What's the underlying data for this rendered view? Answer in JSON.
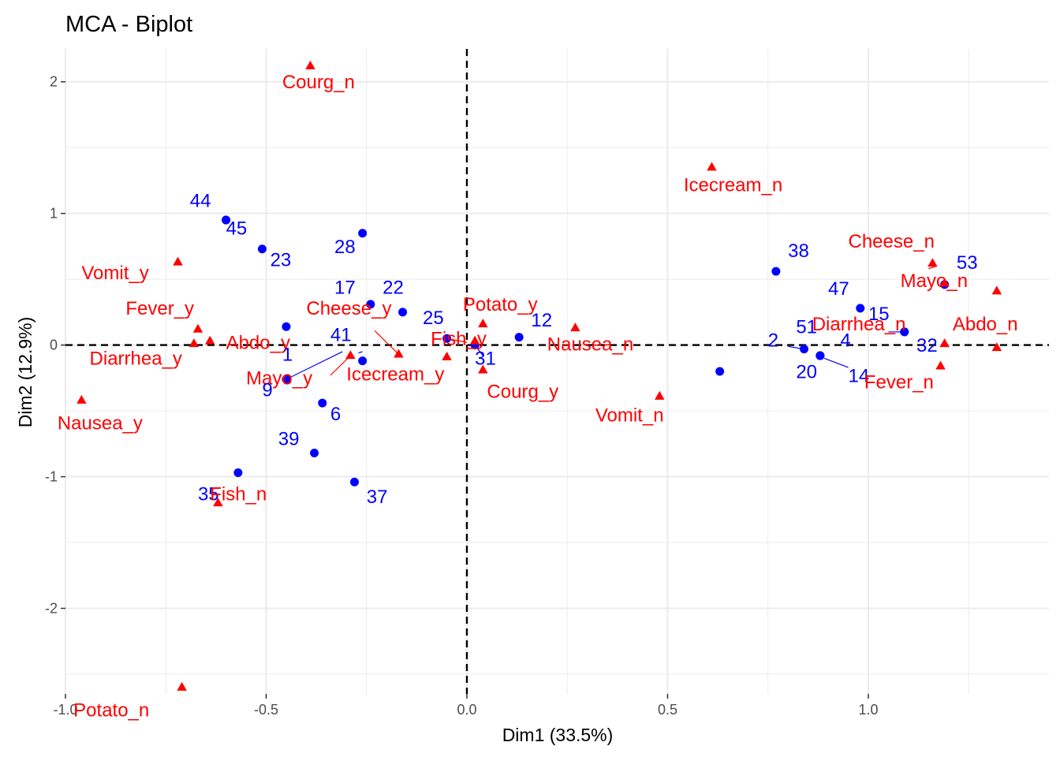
{
  "chart_data": {
    "type": "scatter",
    "title": "MCA - Biplot",
    "xlabel": "Dim1 (33.5%)",
    "ylabel": "Dim2 (12.9%)",
    "xlim": [
      -1.0,
      1.45
    ],
    "ylim": [
      -2.65,
      2.25
    ],
    "x_ticks": [
      -1.0,
      -0.5,
      0.0,
      0.5,
      1.0
    ],
    "x_tick_labels": [
      "-1.0",
      "-0.5",
      "0.0",
      "0.5",
      "1.0"
    ],
    "y_ticks": [
      -2,
      -1,
      0,
      1,
      2
    ],
    "y_tick_labels": [
      "-2",
      "-1",
      "0",
      "1",
      "2"
    ],
    "grid": true,
    "reference_lines": {
      "x": 0,
      "y": 0,
      "style": "dashed"
    },
    "series": [
      {
        "color": "#0000ff",
        "marker": "circle",
        "points": [
          {
            "label": "44",
            "x": -0.6,
            "y": 0.95
          },
          {
            "label": "45",
            "x": -0.6,
            "y": 0.95
          },
          {
            "label": "23",
            "x": -0.51,
            "y": 0.73
          },
          {
            "label": "28",
            "x": -0.26,
            "y": 0.85
          },
          {
            "label": "17",
            "x": -0.24,
            "y": 0.31
          },
          {
            "label": "22",
            "x": -0.16,
            "y": 0.25
          },
          {
            "label": "25",
            "x": -0.05,
            "y": 0.05
          },
          {
            "label": "41",
            "x": -0.26,
            "y": -0.12
          },
          {
            "label": "1",
            "x": -0.45,
            "y": 0.14
          },
          {
            "label": "9",
            "x": -0.45,
            "y": -0.26
          },
          {
            "label": "6",
            "x": -0.36,
            "y": -0.44
          },
          {
            "label": "39",
            "x": -0.38,
            "y": -0.82
          },
          {
            "label": "35",
            "x": -0.57,
            "y": -0.97
          },
          {
            "label": "37",
            "x": -0.28,
            "y": -1.04
          },
          {
            "label": "12",
            "x": 0.13,
            "y": 0.06
          },
          {
            "label": "31",
            "x": 0.02,
            "y": 0.0
          },
          {
            "label": "38",
            "x": 0.77,
            "y": 0.56
          },
          {
            "label": "47",
            "x": 0.98,
            "y": 0.28
          },
          {
            "label": "15",
            "x": 1.09,
            "y": 0.1
          },
          {
            "label": "53",
            "x": 1.19,
            "y": 0.46
          },
          {
            "label": "51",
            "x": 0.88,
            "y": -0.08
          },
          {
            "label": "2",
            "x": 0.84,
            "y": -0.03
          },
          {
            "label": "4",
            "x": 0.88,
            "y": -0.08
          },
          {
            "label": "20",
            "x": 0.63,
            "y": -0.2
          },
          {
            "label": "14",
            "x": 0.88,
            "y": -0.08
          },
          {
            "label": "32",
            "x": 1.09,
            "y": 0.1
          }
        ]
      },
      {
        "color": "#ff0000",
        "marker": "triangle",
        "points": [
          {
            "label": "Courg_n",
            "x": -0.39,
            "y": 2.12
          },
          {
            "label": "Icecream_n",
            "x": 0.61,
            "y": 1.35
          },
          {
            "label": "Vomit_y",
            "x": -0.72,
            "y": 0.63
          },
          {
            "label": "Cheese_n",
            "x": 1.16,
            "y": 0.62
          },
          {
            "label": "Mayo_n",
            "x": 1.19,
            "y": 0.47
          },
          {
            "label": "Abdo_n",
            "x": 1.32,
            "y": 0.41
          },
          {
            "label": "Potato_y",
            "x": 0.04,
            "y": 0.16
          },
          {
            "label": "Nausea_n",
            "x": 0.27,
            "y": 0.13
          },
          {
            "label": "Fever_y",
            "x": -0.67,
            "y": 0.12
          },
          {
            "label": "Cheese_y",
            "x": -0.17,
            "y": -0.07
          },
          {
            "label": "Abdo_y",
            "x": -0.64,
            "y": 0.03
          },
          {
            "label": "Diarrhea_y",
            "x": -0.68,
            "y": 0.01
          },
          {
            "label": "Fish_y",
            "x": 0.02,
            "y": 0.03
          },
          {
            "label": "Mayo_y",
            "x": -0.29,
            "y": -0.08
          },
          {
            "label": "Icecream_y",
            "x": -0.05,
            "y": -0.09
          },
          {
            "label": "Courg_y",
            "x": 0.04,
            "y": -0.19
          },
          {
            "label": "Diarrhea_n",
            "x": 1.19,
            "y": 0.01
          },
          {
            "label": "Abdo_n2",
            "x": 1.32,
            "y": -0.02
          },
          {
            "label": "Fever_n",
            "x": 1.18,
            "y": -0.16
          },
          {
            "label": "Vomit_n",
            "x": 0.48,
            "y": -0.39
          },
          {
            "label": "Nausea_y",
            "x": -0.96,
            "y": -0.42
          },
          {
            "label": "Fish_n",
            "x": -0.62,
            "y": -1.2
          },
          {
            "label": "Potato_n",
            "x": -0.71,
            "y": -2.6
          }
        ]
      }
    ],
    "text_labels": [
      {
        "text": "Courg_n",
        "x": -0.46,
        "y": 1.95,
        "color": "#ff0000"
      },
      {
        "text": "Icecream_n",
        "x": 0.54,
        "y": 1.17,
        "color": "#ff0000"
      },
      {
        "text": "44",
        "x": -0.69,
        "y": 1.05,
        "color": "#0000ff"
      },
      {
        "text": "45",
        "x": -0.6,
        "y": 0.84,
        "color": "#0000ff"
      },
      {
        "text": "23",
        "x": -0.49,
        "y": 0.6,
        "color": "#0000ff"
      },
      {
        "text": "28",
        "x": -0.33,
        "y": 0.7,
        "color": "#0000ff"
      },
      {
        "text": "38",
        "x": 0.8,
        "y": 0.67,
        "color": "#0000ff"
      },
      {
        "text": "Cheese_n",
        "x": 0.95,
        "y": 0.74,
        "color": "#ff0000"
      },
      {
        "text": "53",
        "x": 1.22,
        "y": 0.58,
        "color": "#0000ff"
      },
      {
        "text": "Vomit_y",
        "x": -0.96,
        "y": 0.5,
        "color": "#ff0000"
      },
      {
        "text": "Mayo_n",
        "x": 1.08,
        "y": 0.44,
        "color": "#ff0000"
      },
      {
        "text": "17",
        "x": -0.33,
        "y": 0.39,
        "color": "#0000ff"
      },
      {
        "text": "22",
        "x": -0.21,
        "y": 0.39,
        "color": "#0000ff"
      },
      {
        "text": "47",
        "x": 0.9,
        "y": 0.38,
        "color": "#0000ff"
      },
      {
        "text": "Potato_y",
        "x": -0.01,
        "y": 0.26,
        "color": "#ff0000"
      },
      {
        "text": "Fever_y",
        "x": -0.85,
        "y": 0.23,
        "color": "#ff0000"
      },
      {
        "text": "Cheese_y",
        "x": -0.4,
        "y": 0.23,
        "color": "#ff0000"
      },
      {
        "text": "15",
        "x": 1.0,
        "y": 0.19,
        "color": "#0000ff"
      },
      {
        "text": "25",
        "x": -0.11,
        "y": 0.16,
        "color": "#0000ff"
      },
      {
        "text": "12",
        "x": 0.16,
        "y": 0.14,
        "color": "#0000ff"
      },
      {
        "text": "Diarrhea_n",
        "x": 0.86,
        "y": 0.11,
        "color": "#ff0000"
      },
      {
        "text": "Abdo_n",
        "x": 1.21,
        "y": 0.11,
        "color": "#ff0000"
      },
      {
        "text": "51",
        "x": 0.82,
        "y": 0.09,
        "color": "#0000ff"
      },
      {
        "text": "41",
        "x": -0.34,
        "y": 0.03,
        "color": "#0000ff"
      },
      {
        "text": "Fish_y",
        "x": -0.09,
        "y": 0.0,
        "color": "#ff0000"
      },
      {
        "text": "2",
        "x": 0.75,
        "y": -0.01,
        "color": "#0000ff"
      },
      {
        "text": "4",
        "x": 0.93,
        "y": -0.01,
        "color": "#0000ff"
      },
      {
        "text": "Abdo_y",
        "x": -0.6,
        "y": -0.03,
        "color": "#ff0000"
      },
      {
        "text": "Nausea_n",
        "x": 0.2,
        "y": -0.04,
        "color": "#ff0000"
      },
      {
        "text": "32",
        "x": 1.12,
        "y": -0.05,
        "color": "#0000ff"
      },
      {
        "text": "1",
        "x": -0.46,
        "y": -0.12,
        "color": "#0000ff"
      },
      {
        "text": "31",
        "x": 0.02,
        "y": -0.15,
        "color": "#0000ff"
      },
      {
        "text": "Diarrhea_y",
        "x": -0.94,
        "y": -0.15,
        "color": "#ff0000"
      },
      {
        "text": "Mayo_y",
        "x": -0.55,
        "y": -0.3,
        "color": "#ff0000"
      },
      {
        "text": "Icecream_y",
        "x": -0.3,
        "y": -0.27,
        "color": "#ff0000"
      },
      {
        "text": "20",
        "x": 0.82,
        "y": -0.25,
        "color": "#0000ff"
      },
      {
        "text": "14",
        "x": 0.95,
        "y": -0.28,
        "color": "#0000ff"
      },
      {
        "text": "Fever_n",
        "x": 0.99,
        "y": -0.33,
        "color": "#ff0000"
      },
      {
        "text": "9",
        "x": -0.51,
        "y": -0.39,
        "color": "#0000ff"
      },
      {
        "text": "Courg_y",
        "x": 0.05,
        "y": -0.4,
        "color": "#ff0000"
      },
      {
        "text": "Vomit_n",
        "x": 0.32,
        "y": -0.58,
        "color": "#ff0000"
      },
      {
        "text": "6",
        "x": -0.34,
        "y": -0.57,
        "color": "#0000ff"
      },
      {
        "text": "Nausea_y",
        "x": -1.02,
        "y": -0.64,
        "color": "#ff0000"
      },
      {
        "text": "39",
        "x": -0.47,
        "y": -0.76,
        "color": "#0000ff"
      },
      {
        "text": "35",
        "x": -0.67,
        "y": -1.18,
        "color": "#0000ff"
      },
      {
        "text": "Fish_n",
        "x": -0.64,
        "y": -1.18,
        "color": "#ff0000"
      },
      {
        "text": "37",
        "x": -0.25,
        "y": -1.2,
        "color": "#0000ff"
      },
      {
        "text": "Potato_n",
        "x": -0.98,
        "y": -2.82,
        "color": "#ff0000"
      }
    ],
    "connectors": [
      {
        "x1": -0.45,
        "y1": -0.26,
        "x2": -0.31,
        "y2": -0.05,
        "color": "#0000ff"
      },
      {
        "x1": -0.26,
        "y1": -0.05,
        "x2": -0.27,
        "y2": -0.06,
        "color": "#0000ff"
      },
      {
        "x1": -0.34,
        "y1": -0.23,
        "x2": -0.29,
        "y2": -0.08,
        "color": "#ff0000"
      },
      {
        "x1": -0.23,
        "y1": 0.11,
        "x2": -0.17,
        "y2": -0.07,
        "color": "#ff0000"
      },
      {
        "x1": 0.04,
        "y1": -0.08,
        "x2": 0.02,
        "y2": 0.0,
        "color": "#0000ff"
      },
      {
        "x1": 0.0,
        "y1": 0.02,
        "x2": -0.05,
        "y2": 0.05,
        "color": "#ff0000"
      },
      {
        "x1": 0.8,
        "y1": -0.01,
        "x2": 0.84,
        "y2": -0.03,
        "color": "#0000ff"
      },
      {
        "x1": 0.89,
        "y1": -0.1,
        "x2": 0.95,
        "y2": -0.17,
        "color": "#0000ff"
      },
      {
        "x1": 1.05,
        "y1": 0.1,
        "x2": 1.09,
        "y2": 0.1,
        "color": "#0000ff"
      },
      {
        "x1": 1.15,
        "y1": 0.58,
        "x2": 1.17,
        "y2": 0.6,
        "color": "#ff0000"
      }
    ]
  }
}
